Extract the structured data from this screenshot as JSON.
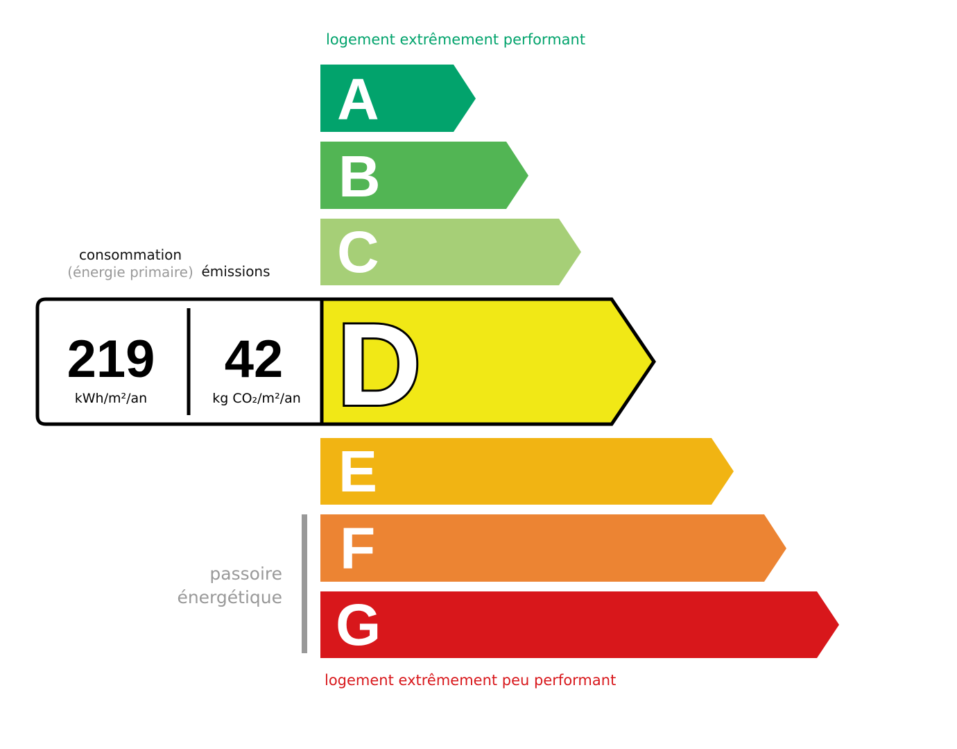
{
  "top_label": "logement extrêmement performant",
  "bottom_label": "logement extrêmement peu performant",
  "consumption": {
    "header": "consommation",
    "subheader": "(énergie primaire)",
    "value": "219",
    "unit": "kWh/m²/an"
  },
  "emissions": {
    "header": "émissions",
    "value": "42",
    "unit": "kg CO₂/m²/an"
  },
  "passoire": {
    "line1": "passoire",
    "line2": "énergétique"
  },
  "current_class": "D",
  "classes": [
    {
      "letter": "A",
      "color": "#02a36c"
    },
    {
      "letter": "B",
      "color": "#52b554"
    },
    {
      "letter": "C",
      "color": "#a6cf77"
    },
    {
      "letter": "D",
      "color": "#f1e816"
    },
    {
      "letter": "E",
      "color": "#f1b413"
    },
    {
      "letter": "F",
      "color": "#ec8433"
    },
    {
      "letter": "G",
      "color": "#d8171b"
    }
  ],
  "colors": {
    "top_label": "#02a36c",
    "bottom_label": "#d8171b",
    "gray": "#999999"
  }
}
